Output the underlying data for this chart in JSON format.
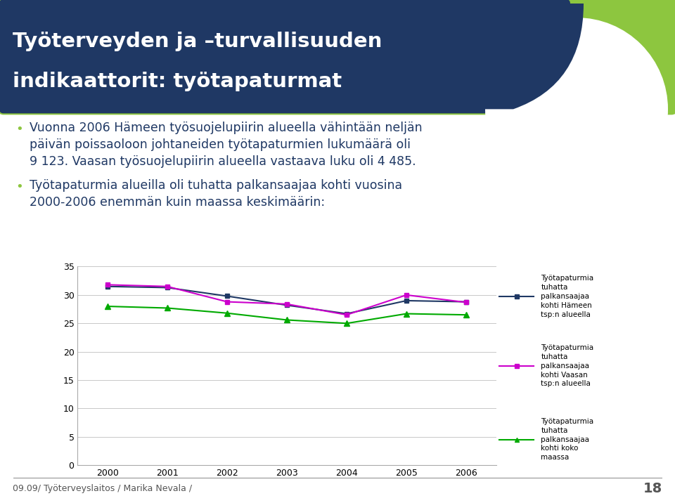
{
  "years": [
    2000,
    2001,
    2002,
    2003,
    2004,
    2005,
    2006
  ],
  "hameen": [
    31.5,
    31.3,
    29.8,
    28.2,
    26.7,
    29.0,
    28.8
  ],
  "vaasan": [
    31.8,
    31.5,
    28.8,
    28.4,
    26.5,
    30.0,
    28.7
  ],
  "koko_maassa": [
    28.0,
    27.7,
    26.8,
    25.6,
    25.0,
    26.7,
    26.5
  ],
  "hameen_color": "#1f3864",
  "vaasan_color": "#cc00cc",
  "maassa_color": "#00aa00",
  "ylim": [
    0,
    35
  ],
  "yticks": [
    0,
    5,
    10,
    15,
    20,
    25,
    30,
    35
  ],
  "legend_hameen": "Työtapaturmia\ntuhatta\npalkansaajaa\nkohti Hämeen\ntsp:n alueella",
  "legend_vaasan": "Työtapaturmia\ntuhatta\npalkansaajaa\nkohti Vaasan\ntsp:n alueella",
  "legend_maassa": "Työtapaturmia\ntuhatta\npalkansaajaa\nkohti koko\nmaassa",
  "title_line1": "Työterveyden ja –turvallisuuden",
  "title_line2": "indikaattorit: työtapaturmat",
  "bullet1_line1": "Vuonna 2006 Hämeen työsuojelupiirin alueella vähintään neljän",
  "bullet1_line2": "päivän poissaoloon johtaneiden työtapaturmien lukumäärä oli",
  "bullet1_line3": "9 123. Vaasan työsuojelupiirin alueella vastaava luku oli 4 485.",
  "bullet2_line1": "Työtapaturmia alueilla oli tuhatta palkansaajaa kohti vuosina",
  "bullet2_line2": "2000-2006 enemmän kuin maassa keskimäärin:",
  "footer": "09.09/ Työterveyslaitos / Marika Nevala /",
  "page_num": "18",
  "bg_title_color": "#1f3864",
  "bg_accent_color": "#8dc63f",
  "text_color": "#1f3864",
  "chart_border_color": "#aaaaaa"
}
